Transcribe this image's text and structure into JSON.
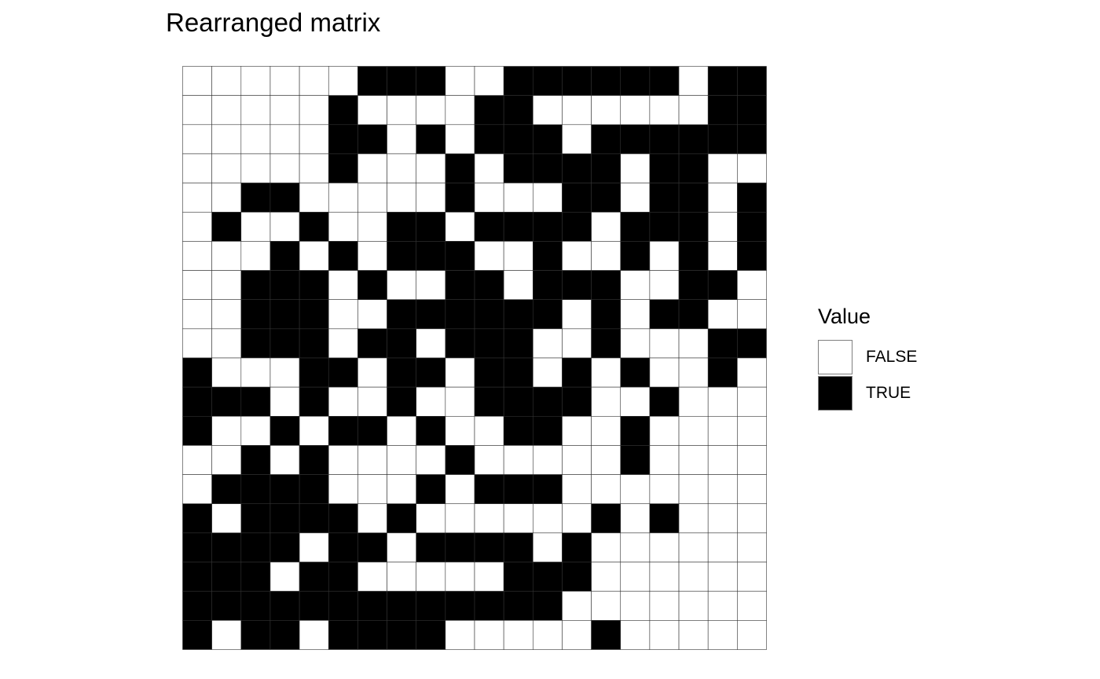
{
  "chart_data": {
    "type": "heatmap",
    "title": "Rearranged matrix",
    "xlabel": "",
    "ylabel": "",
    "rows": 20,
    "cols": 20,
    "legend": {
      "title": "Value",
      "position": "right",
      "entries": [
        {
          "label": "FALSE",
          "color": "#ffffff"
        },
        {
          "label": "TRUE",
          "color": "#000000"
        }
      ]
    },
    "matrix": [
      [
        0,
        0,
        0,
        0,
        0,
        0,
        1,
        1,
        1,
        0,
        0,
        1,
        1,
        1,
        1,
        1,
        1,
        0,
        1,
        1
      ],
      [
        0,
        0,
        0,
        0,
        0,
        1,
        0,
        0,
        0,
        0,
        1,
        1,
        0,
        0,
        0,
        0,
        0,
        0,
        1,
        1
      ],
      [
        0,
        0,
        0,
        0,
        0,
        1,
        1,
        0,
        1,
        0,
        1,
        1,
        1,
        0,
        1,
        1,
        1,
        1,
        1,
        1
      ],
      [
        0,
        0,
        0,
        0,
        0,
        1,
        0,
        0,
        0,
        1,
        0,
        1,
        1,
        1,
        1,
        0,
        1,
        1,
        0,
        0
      ],
      [
        0,
        0,
        1,
        1,
        0,
        0,
        0,
        0,
        0,
        1,
        0,
        0,
        0,
        1,
        1,
        0,
        1,
        1,
        0,
        1
      ],
      [
        0,
        1,
        0,
        0,
        1,
        0,
        0,
        1,
        1,
        0,
        1,
        1,
        1,
        1,
        0,
        1,
        1,
        1,
        0,
        1
      ],
      [
        0,
        0,
        0,
        1,
        0,
        1,
        0,
        1,
        1,
        1,
        0,
        0,
        1,
        0,
        0,
        1,
        0,
        1,
        0,
        1
      ],
      [
        0,
        0,
        1,
        1,
        1,
        0,
        1,
        0,
        0,
        1,
        1,
        0,
        1,
        1,
        1,
        0,
        0,
        1,
        1,
        0
      ],
      [
        0,
        0,
        1,
        1,
        1,
        0,
        0,
        1,
        1,
        1,
        1,
        1,
        1,
        0,
        1,
        0,
        1,
        1,
        0,
        0
      ],
      [
        0,
        0,
        1,
        1,
        1,
        0,
        1,
        1,
        0,
        1,
        1,
        1,
        0,
        0,
        1,
        0,
        0,
        0,
        1,
        1
      ],
      [
        1,
        0,
        0,
        0,
        1,
        1,
        0,
        1,
        1,
        0,
        1,
        1,
        0,
        1,
        0,
        1,
        0,
        0,
        1,
        0
      ],
      [
        1,
        1,
        1,
        0,
        1,
        0,
        0,
        1,
        0,
        0,
        1,
        1,
        1,
        1,
        0,
        0,
        1,
        0,
        0,
        0
      ],
      [
        1,
        0,
        0,
        1,
        0,
        1,
        1,
        0,
        1,
        0,
        0,
        1,
        1,
        0,
        0,
        1,
        0,
        0,
        0,
        0
      ],
      [
        0,
        0,
        1,
        0,
        1,
        0,
        0,
        0,
        0,
        1,
        0,
        0,
        0,
        0,
        0,
        1,
        0,
        0,
        0,
        0
      ],
      [
        0,
        1,
        1,
        1,
        1,
        0,
        0,
        0,
        1,
        0,
        1,
        1,
        1,
        0,
        0,
        0,
        0,
        0,
        0,
        0
      ],
      [
        1,
        0,
        1,
        1,
        1,
        1,
        0,
        1,
        0,
        0,
        0,
        0,
        0,
        0,
        1,
        0,
        1,
        0,
        0,
        0
      ],
      [
        1,
        1,
        1,
        1,
        0,
        1,
        1,
        0,
        1,
        1,
        1,
        1,
        0,
        1,
        0,
        0,
        0,
        0,
        0,
        0
      ],
      [
        1,
        1,
        1,
        0,
        1,
        1,
        0,
        0,
        0,
        0,
        0,
        1,
        1,
        1,
        0,
        0,
        0,
        0,
        0,
        0
      ],
      [
        1,
        1,
        1,
        1,
        1,
        1,
        1,
        1,
        1,
        1,
        1,
        1,
        1,
        0,
        0,
        0,
        0,
        0,
        0,
        0
      ],
      [
        1,
        0,
        1,
        1,
        0,
        1,
        1,
        1,
        1,
        0,
        0,
        0,
        0,
        0,
        1,
        0,
        0,
        0,
        0,
        0
      ]
    ]
  }
}
